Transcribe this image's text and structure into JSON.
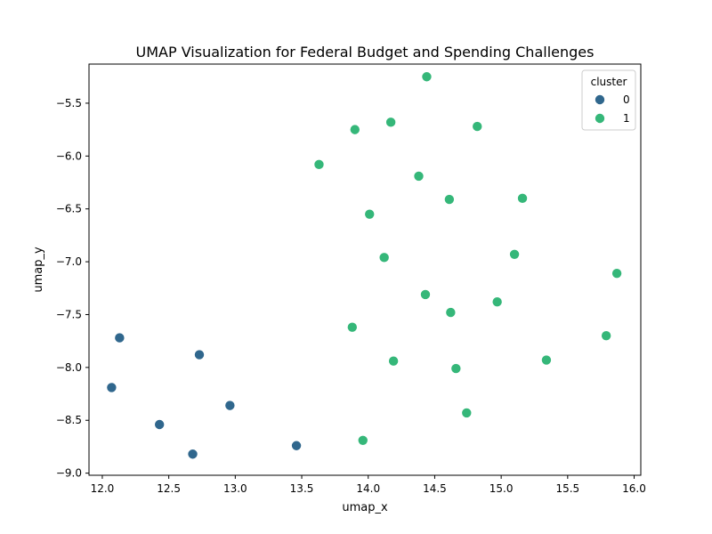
{
  "chart_data": {
    "type": "scatter",
    "title": "UMAP Visualization for Federal Budget and Spending Challenges",
    "xlabel": "umap_x",
    "ylabel": "umap_y",
    "xlim": [
      11.9,
      16.05
    ],
    "ylim": [
      -9.02,
      -5.13
    ],
    "xticks": [
      12.0,
      12.5,
      13.0,
      13.5,
      14.0,
      14.5,
      15.0,
      15.5,
      16.0
    ],
    "xtick_labels": [
      "12.0",
      "12.5",
      "13.0",
      "13.5",
      "14.0",
      "14.5",
      "15.0",
      "15.5",
      "16.0"
    ],
    "yticks": [
      -9.0,
      -8.5,
      -8.0,
      -7.5,
      -7.0,
      -6.5,
      -6.0,
      -5.5
    ],
    "ytick_labels": [
      "−9.0",
      "−8.5",
      "−8.0",
      "−7.5",
      "−7.0",
      "−6.5",
      "−6.0",
      "−5.5"
    ],
    "grid": false,
    "legend": {
      "title": "cluster",
      "placement": "top-right"
    },
    "series": [
      {
        "name": "0",
        "color": "#30678d",
        "points": [
          [
            12.13,
            -7.72
          ],
          [
            12.73,
            -7.88
          ],
          [
            12.07,
            -8.19
          ],
          [
            12.96,
            -8.36
          ],
          [
            12.43,
            -8.54
          ],
          [
            12.68,
            -8.82
          ],
          [
            13.46,
            -8.74
          ]
        ]
      },
      {
        "name": "1",
        "color": "#35b779",
        "points": [
          [
            14.44,
            -5.25
          ],
          [
            14.17,
            -5.68
          ],
          [
            13.9,
            -5.75
          ],
          [
            14.82,
            -5.72
          ],
          [
            13.63,
            -6.08
          ],
          [
            14.38,
            -6.19
          ],
          [
            14.61,
            -6.41
          ],
          [
            15.16,
            -6.4
          ],
          [
            14.01,
            -6.55
          ],
          [
            14.12,
            -6.96
          ],
          [
            15.1,
            -6.93
          ],
          [
            15.87,
            -7.11
          ],
          [
            14.43,
            -7.31
          ],
          [
            14.97,
            -7.38
          ],
          [
            14.62,
            -7.48
          ],
          [
            13.88,
            -7.62
          ],
          [
            15.79,
            -7.7
          ],
          [
            14.19,
            -7.94
          ],
          [
            14.66,
            -8.01
          ],
          [
            15.34,
            -7.93
          ],
          [
            14.74,
            -8.43
          ],
          [
            13.96,
            -8.69
          ]
        ]
      }
    ]
  }
}
